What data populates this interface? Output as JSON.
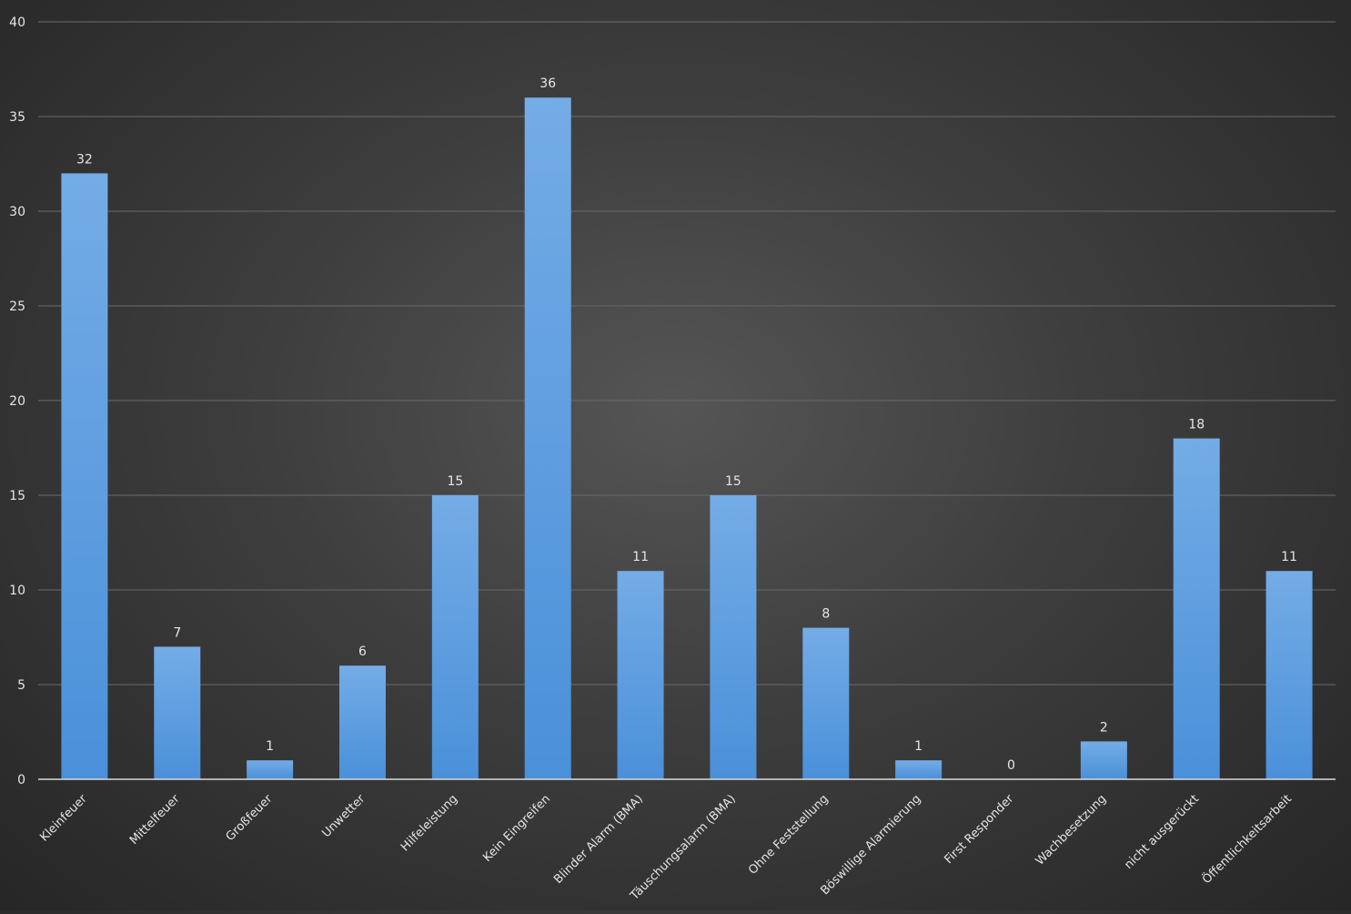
{
  "chart_data": {
    "type": "bar",
    "categories": [
      "Kleinfeuer",
      "Mittelfeuer",
      "Großfeuer",
      "Unwetter",
      "Hilfeleistung",
      "Kein Eingreifen",
      "Blinder Alarm (BMA)",
      "Täuschungsalarm (BMA)",
      "Ohne Feststellung",
      "Böswillige Alarmierung",
      "First Responder",
      "Wachbesetzung",
      "nicht ausgerückt",
      "Öffentlichkeitsarbeit"
    ],
    "values": [
      32,
      7,
      1,
      6,
      15,
      36,
      11,
      15,
      8,
      1,
      0,
      2,
      18,
      11
    ],
    "ylim": [
      0,
      40
    ],
    "yticks": [
      0,
      5,
      10,
      15,
      20,
      25,
      30,
      35,
      40
    ],
    "grid": true,
    "data_labels": true,
    "legend": "none",
    "bar_color": "#4a90d9",
    "bar_color_light": "#74ace6",
    "gridline_color": "#6a6a6a",
    "axis_color": "#d9d9d9",
    "background_color": "#3d3d3d"
  }
}
